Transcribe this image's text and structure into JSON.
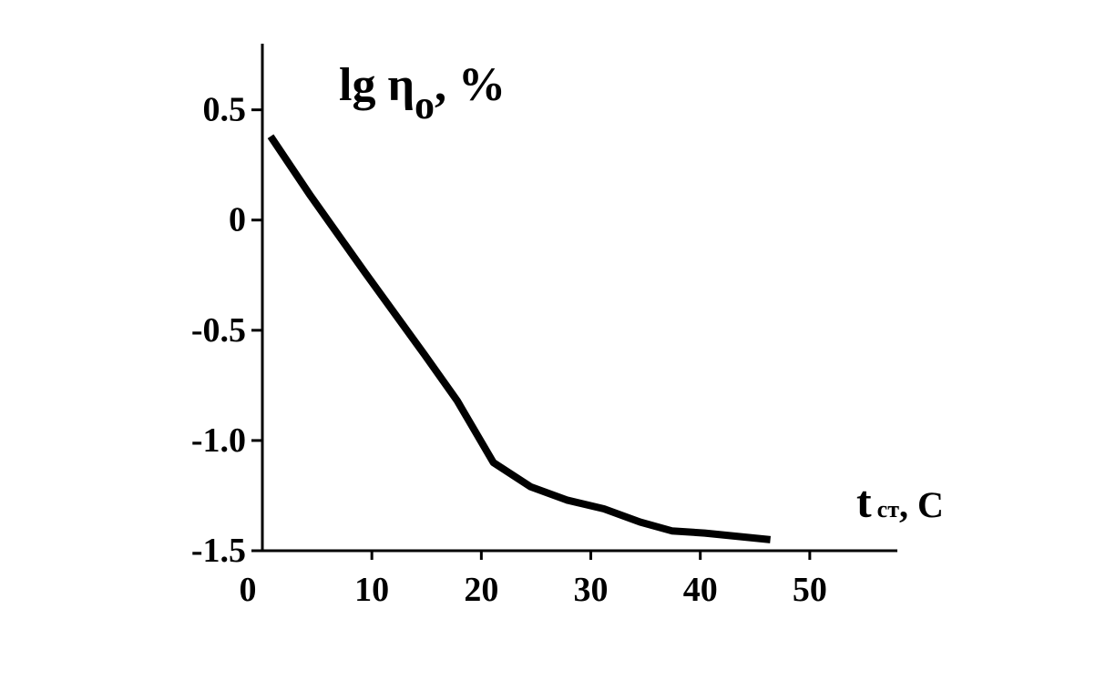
{
  "chart_data": {
    "type": "line",
    "y_label": "lg η",
    "y_label_sub": "o",
    "y_label_suffix": ", %",
    "x_label": "t",
    "x_label_sub": "ст",
    "x_label_suffix": ", С",
    "x": [
      0.75,
      4.4,
      9.4,
      14.8,
      17.8,
      21.1,
      24.5,
      27.8,
      31.2,
      34.5,
      37.4,
      40.4,
      46.4
    ],
    "series": [
      {
        "color": "#000000",
        "values": [
          0.38,
          0.11,
          -0.24,
          -0.61,
          -0.82,
          -1.1,
          -1.21,
          -1.27,
          -1.31,
          -1.37,
          -1.41,
          -1.42,
          -1.45
        ]
      }
    ],
    "xlim": [
      0,
      58
    ],
    "xticks": [
      0,
      10,
      20,
      30,
      40,
      50
    ],
    "ylim": [
      -1.5,
      0.8
    ],
    "yticks": [
      0.5,
      0,
      -0.5,
      {
        "value": -1,
        "label": "-1.0"
      },
      -1.5
    ]
  }
}
